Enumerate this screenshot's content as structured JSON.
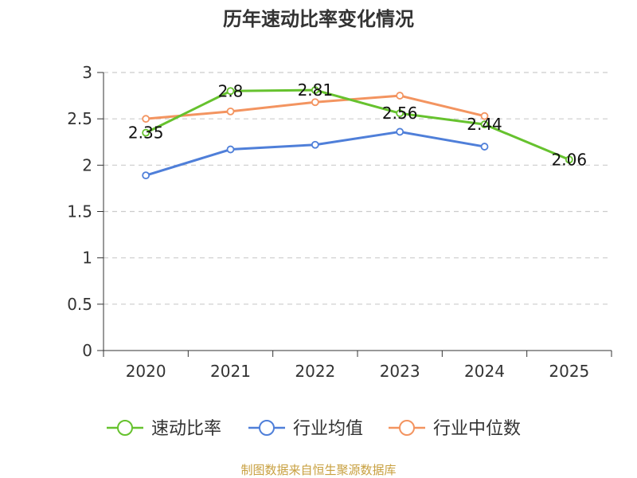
{
  "chart_data": {
    "type": "line",
    "title": "历年速动比率变化情况",
    "categories": [
      "2020",
      "2021",
      "2022",
      "2023",
      "2024",
      "2025"
    ],
    "ylim": [
      0,
      3
    ],
    "yticks": [
      "0",
      "0.5",
      "1",
      "1.5",
      "2",
      "2.5",
      "3"
    ],
    "grid": true,
    "legend_position": "bottom",
    "series": [
      {
        "name": "速动比率",
        "color": "#66c22e",
        "values": [
          2.35,
          2.8,
          2.81,
          2.56,
          2.44,
          2.06
        ],
        "labels": [
          "2.35",
          "2.8",
          "2.81",
          "2.56",
          "2.44",
          "2.06"
        ]
      },
      {
        "name": "行业均值",
        "color": "#4f7fd9",
        "values": [
          1.89,
          2.17,
          2.22,
          2.36,
          2.2,
          null
        ]
      },
      {
        "name": "行业中位数",
        "color": "#f39460",
        "values": [
          2.5,
          2.58,
          2.68,
          2.75,
          2.53,
          null
        ]
      }
    ]
  },
  "footer": {
    "source": "制图数据来自恒生聚源数据库"
  }
}
